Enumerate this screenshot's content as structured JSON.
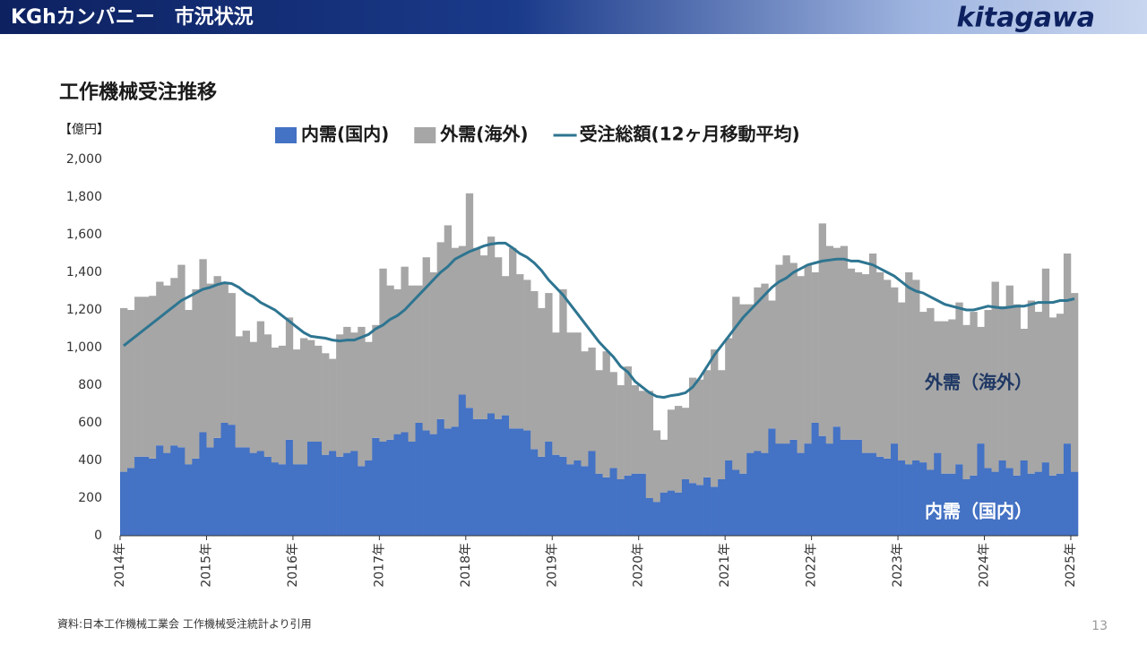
{
  "header": {
    "title": "KGhカンパニー　市況状況",
    "logo": "kitagawa"
  },
  "chart_data": {
    "type": "bar",
    "stacked": true,
    "title": "工作機械受注推移",
    "y_label": "【億円】",
    "categories": [
      "2014年",
      null,
      null,
      null,
      null,
      null,
      null,
      null,
      null,
      null,
      null,
      null,
      "2015年",
      null,
      null,
      null,
      null,
      null,
      null,
      null,
      null,
      null,
      null,
      null,
      "2016年",
      null,
      null,
      null,
      null,
      null,
      null,
      null,
      null,
      null,
      null,
      null,
      "2017年",
      null,
      null,
      null,
      null,
      null,
      null,
      null,
      null,
      null,
      null,
      null,
      "2018年",
      null,
      null,
      null,
      null,
      null,
      null,
      null,
      null,
      null,
      null,
      null,
      "2019年",
      null,
      null,
      null,
      null,
      null,
      null,
      null,
      null,
      null,
      null,
      null,
      "2020年",
      null,
      null,
      null,
      null,
      null,
      null,
      null,
      null,
      null,
      null,
      null,
      "2021年",
      null,
      null,
      null,
      null,
      null,
      null,
      null,
      null,
      null,
      null,
      null,
      "2022年",
      null,
      null,
      null,
      null,
      null,
      null,
      null,
      null,
      null,
      null,
      null,
      "2023年",
      null,
      null,
      null,
      null,
      null,
      null,
      null,
      null,
      null,
      null,
      null,
      "2024年",
      null,
      null,
      null,
      null,
      null,
      null,
      null,
      null,
      null,
      null,
      null,
      "2025年"
    ],
    "series": [
      {
        "name": "内需(国内)",
        "type": "bar",
        "color": "#4472c4",
        "values": [
          340,
          360,
          420,
          420,
          410,
          480,
          440,
          480,
          470,
          380,
          410,
          550,
          470,
          520,
          600,
          590,
          470,
          470,
          440,
          450,
          420,
          390,
          380,
          510,
          380,
          380,
          500,
          500,
          430,
          450,
          420,
          440,
          450,
          370,
          400,
          520,
          500,
          510,
          540,
          550,
          500,
          600,
          560,
          540,
          620,
          570,
          580,
          750,
          680,
          620,
          620,
          650,
          620,
          640,
          570,
          570,
          560,
          460,
          420,
          500,
          430,
          420,
          380,
          400,
          370,
          450,
          330,
          310,
          360,
          300,
          320,
          330,
          330,
          200,
          180,
          230,
          240,
          230,
          300,
          280,
          270,
          310,
          260,
          300,
          400,
          350,
          330,
          440,
          450,
          440,
          570,
          490,
          490,
          510,
          440,
          490,
          600,
          530,
          490,
          580,
          510,
          510,
          510,
          440,
          440,
          420,
          410,
          490,
          400,
          380,
          400,
          390,
          350,
          440,
          330,
          330,
          380,
          300,
          320,
          490,
          360,
          340,
          400,
          360,
          320,
          400,
          330,
          340,
          390,
          320,
          330,
          490,
          340
        ]
      },
      {
        "name": "外需(海外)",
        "type": "bar",
        "color": "#a6a6a6",
        "values": [
          870,
          840,
          850,
          850,
          865,
          870,
          890,
          890,
          970,
          820,
          900,
          920,
          870,
          860,
          750,
          700,
          590,
          620,
          590,
          690,
          650,
          610,
          630,
          650,
          610,
          670,
          540,
          510,
          540,
          490,
          650,
          670,
          630,
          740,
          630,
          600,
          920,
          820,
          770,
          880,
          830,
          730,
          920,
          860,
          940,
          1080,
          950,
          790,
          1140,
          910,
          870,
          940,
          860,
          740,
          960,
          820,
          800,
          840,
          790,
          790,
          650,
          890,
          700,
          680,
          610,
          550,
          550,
          670,
          510,
          500,
          580,
          470,
          440,
          570,
          380,
          280,
          430,
          460,
          380,
          560,
          560,
          570,
          730,
          580,
          650,
          920,
          900,
          790,
          870,
          900,
          680,
          950,
          1000,
          940,
          940,
          950,
          800,
          1130,
          1050,
          950,
          1030,
          910,
          890,
          950,
          1060,
          980,
          950,
          830,
          840,
          1020,
          960,
          800,
          860,
          700,
          810,
          820,
          860,
          820,
          870,
          620,
          840,
          1010,
          820,
          970,
          910,
          700,
          920,
          850,
          1030,
          840,
          850,
          1010,
          950
        ]
      },
      {
        "name": "受注総額(12ヶ月移動平均)",
        "type": "line",
        "color": "#2e7591",
        "values": [
          1010,
          1040,
          1070,
          1100,
          1130,
          1160,
          1190,
          1220,
          1250,
          1270,
          1290,
          1310,
          1320,
          1335,
          1345,
          1340,
          1320,
          1290,
          1270,
          1240,
          1220,
          1200,
          1170,
          1140,
          1110,
          1080,
          1060,
          1055,
          1050,
          1040,
          1035,
          1040,
          1040,
          1055,
          1070,
          1100,
          1120,
          1150,
          1170,
          1200,
          1240,
          1280,
          1320,
          1360,
          1400,
          1430,
          1470,
          1490,
          1510,
          1525,
          1540,
          1550,
          1555,
          1555,
          1530,
          1500,
          1480,
          1450,
          1410,
          1360,
          1320,
          1280,
          1230,
          1180,
          1130,
          1080,
          1030,
          990,
          950,
          900,
          870,
          820,
          790,
          760,
          740,
          735,
          745,
          750,
          760,
          790,
          840,
          900,
          960,
          1010,
          1060,
          1110,
          1160,
          1200,
          1240,
          1280,
          1320,
          1350,
          1370,
          1400,
          1420,
          1440,
          1450,
          1460,
          1465,
          1470,
          1470,
          1460,
          1460,
          1450,
          1440,
          1420,
          1400,
          1380,
          1350,
          1320,
          1300,
          1290,
          1270,
          1250,
          1230,
          1220,
          1210,
          1200,
          1200,
          1210,
          1220,
          1215,
          1210,
          1215,
          1220,
          1220,
          1230,
          1240,
          1240,
          1240,
          1250,
          1250,
          1260
        ]
      }
    ],
    "ylim": [
      0,
      2000
    ],
    "yticks": [
      0,
      200,
      400,
      600,
      800,
      {
        "value": 1000,
        "label": "1,000"
      },
      {
        "value": 1200,
        "label": "1,200"
      },
      {
        "value": 1400,
        "label": "1,400"
      },
      {
        "value": 1600,
        "label": "1,600"
      },
      {
        "value": 1800,
        "label": "1,800"
      },
      {
        "value": 2000,
        "label": "2,000"
      }
    ],
    "grid": false,
    "legend": "top",
    "annotations": [
      "外需（海外）",
      "内需（国内）"
    ]
  },
  "footer": {
    "source": "資料:日本工作機械工業会 工作機械受注統計より引用",
    "page": "13"
  }
}
